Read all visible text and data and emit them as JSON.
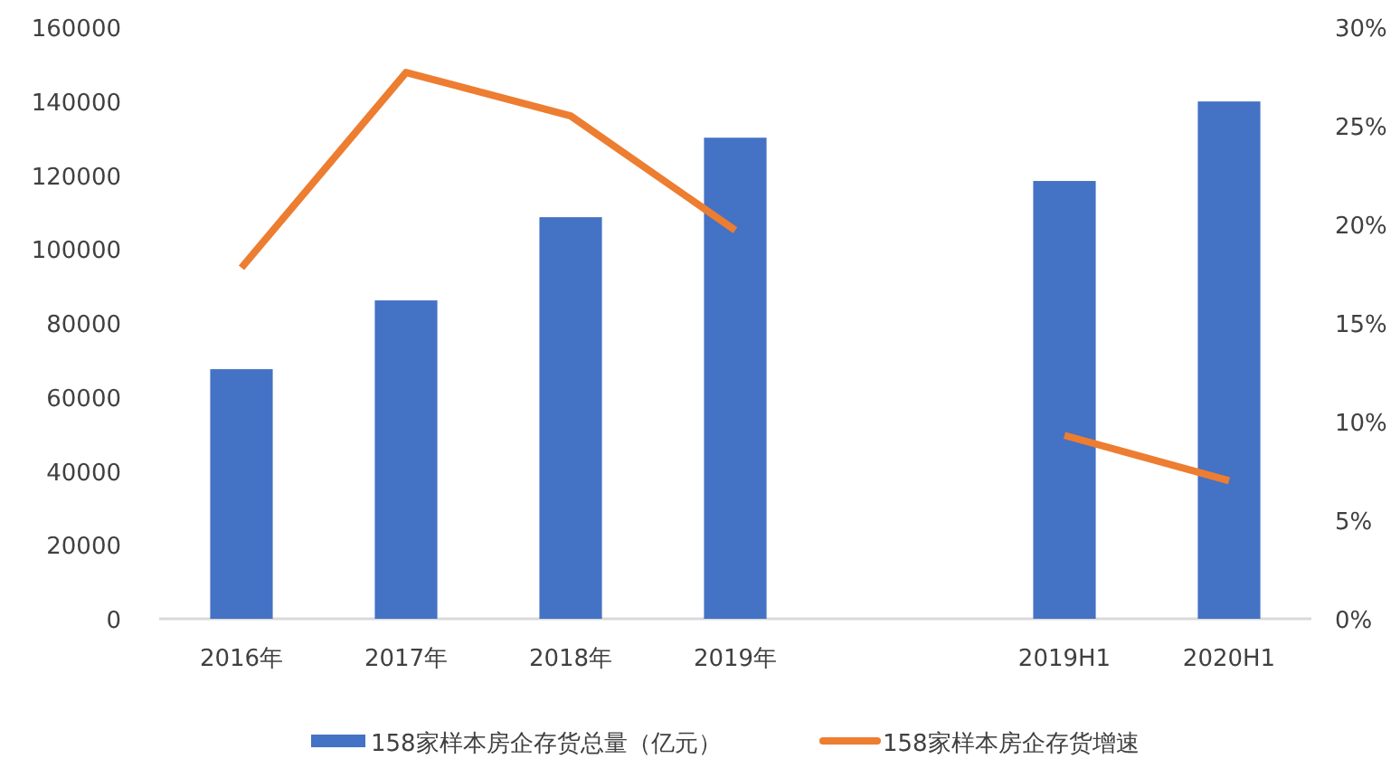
{
  "chart_data": {
    "type": "bar",
    "categories": [
      "2016年",
      "2017年",
      "2018年",
      "2019年",
      null,
      "2019H1",
      "2020H1"
    ],
    "series": [
      {
        "name": "158家样本房企存货总量（亿元）",
        "color": "#4472c4",
        "values": [
          67500,
          86100,
          108600,
          130100,
          null,
          118400,
          139900
        ]
      },
      {
        "name": "158家样本房企存货增速",
        "type": "line",
        "axis": "y2",
        "color": "#ed7d31",
        "values": [
          17.8,
          27.7,
          25.5,
          19.7,
          null,
          9.3,
          7.0
        ]
      }
    ],
    "ylim": [
      0,
      160000
    ],
    "yticks": [
      0,
      20000,
      40000,
      60000,
      80000,
      100000,
      120000,
      140000,
      160000
    ],
    "y2lim": [
      0,
      30
    ],
    "y2ticks": [
      {
        "value": 0,
        "label": "0%"
      },
      {
        "value": 5,
        "label": "5%"
      },
      {
        "value": 10,
        "label": "10%"
      },
      {
        "value": 15,
        "label": "15%"
      },
      {
        "value": 20,
        "label": "20%"
      },
      {
        "value": 25,
        "label": "25%"
      },
      {
        "value": 30,
        "label": "30%"
      }
    ],
    "grid": false,
    "legend": "bottom",
    "marker": "none",
    "line_style": "solid"
  }
}
